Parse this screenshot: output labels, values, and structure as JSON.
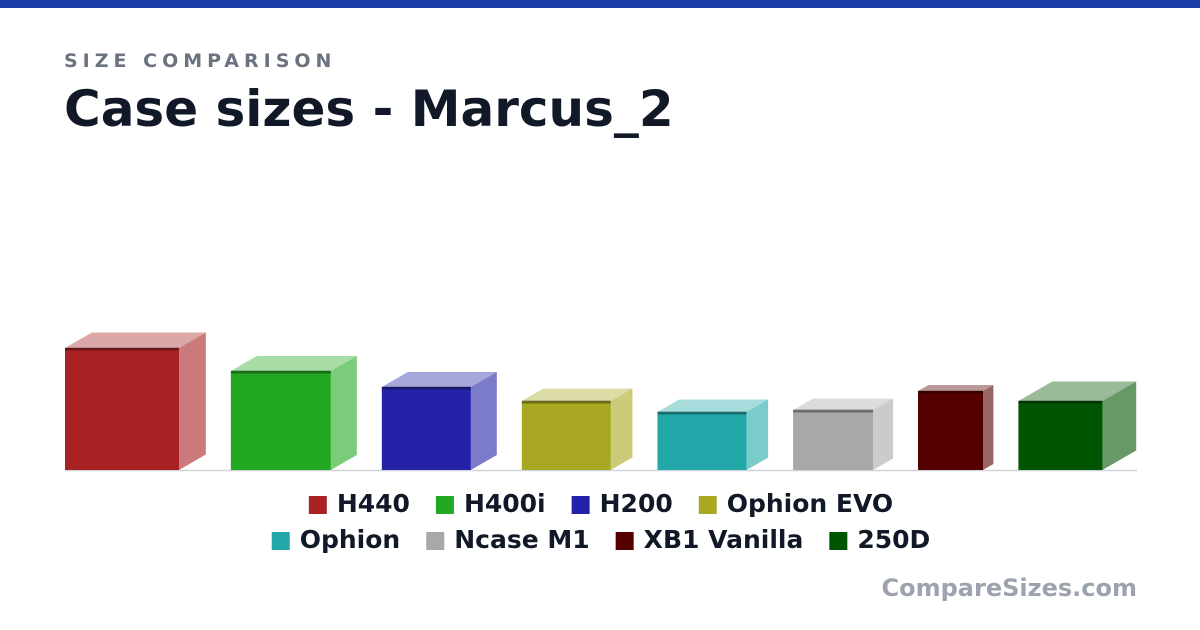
{
  "subtitle": "SIZE COMPARISON",
  "title": "Case sizes - Marcus_2",
  "footer": "CompareSizes.com",
  "chart_data": {
    "type": "box3d",
    "items": [
      {
        "name": "H440",
        "color": "#a82224",
        "width": 114,
        "height": 122,
        "depth": 31
      },
      {
        "name": "H400i",
        "color": "#22a822",
        "width": 100,
        "height": 99,
        "depth": 30
      },
      {
        "name": "H200",
        "color": "#2422a8",
        "width": 89,
        "height": 83,
        "depth": 30
      },
      {
        "name": "Ophion EVO",
        "color": "#a8a822",
        "width": 89,
        "height": 69,
        "depth": 25
      },
      {
        "name": "Ophion",
        "color": "#22a8a8",
        "width": 89,
        "height": 58,
        "depth": 25
      },
      {
        "name": "Ncase M1",
        "color": "#a8a8a8",
        "width": 80,
        "height": 60,
        "depth": 23
      },
      {
        "name": "XB1 Vanilla",
        "color": "#550000",
        "width": 65,
        "height": 79,
        "depth": 12
      },
      {
        "name": "250D",
        "color": "#005500",
        "width": 84,
        "height": 69,
        "depth": 39
      }
    ]
  }
}
